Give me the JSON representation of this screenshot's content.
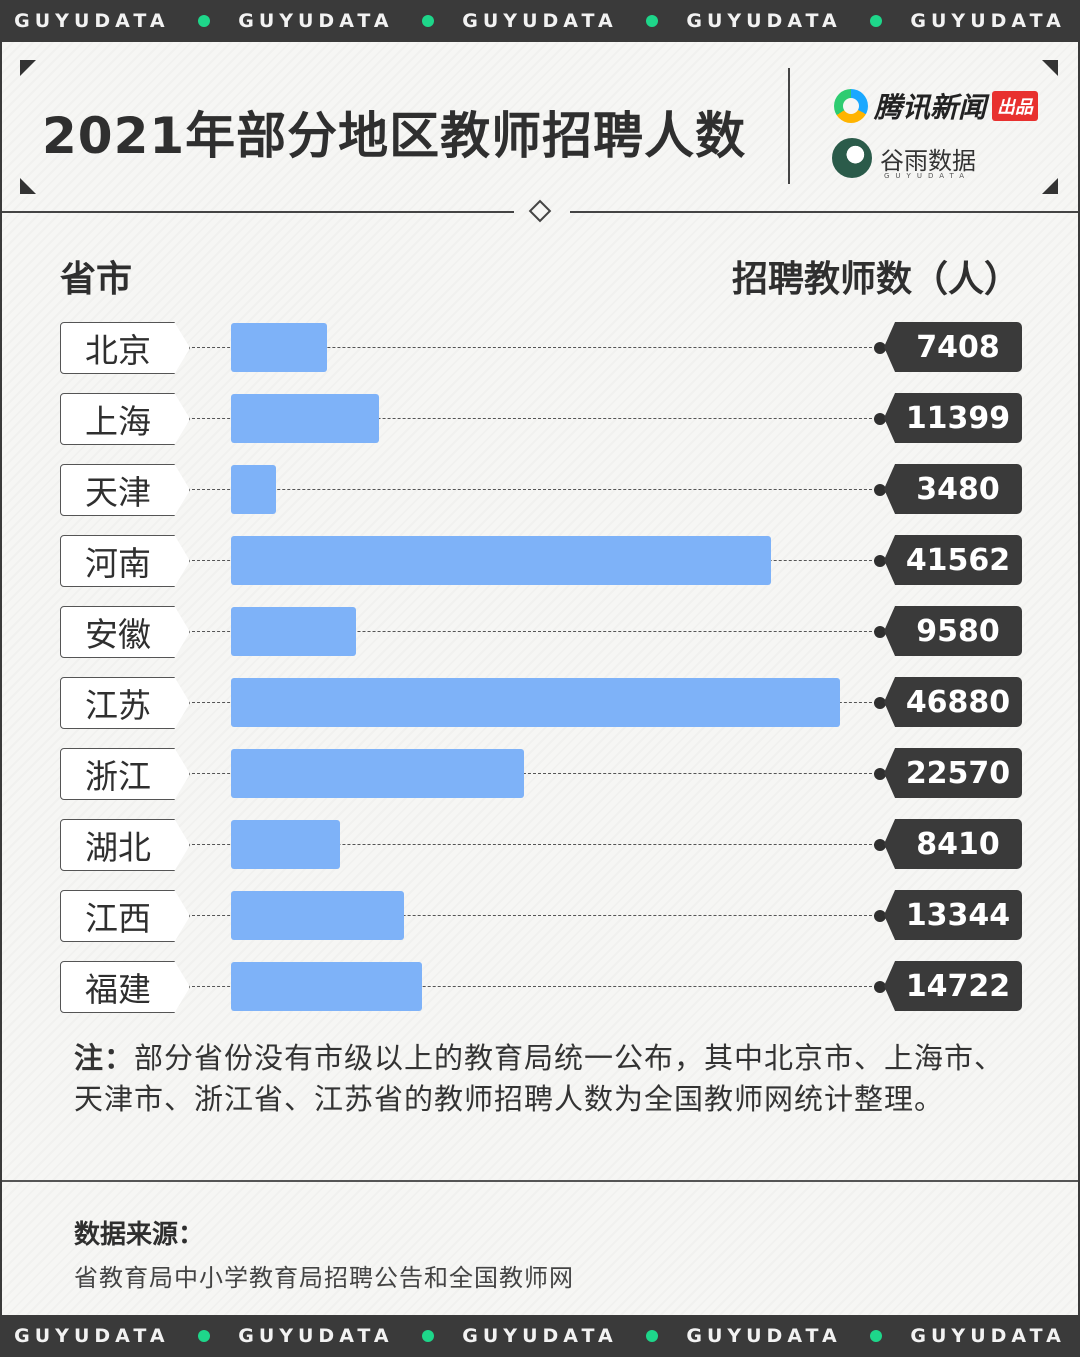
{
  "ticker": {
    "top": [
      "GUYUDATA",
      "GUYUDATA",
      "GUYUDATA",
      "GUYUDATA",
      "GUYUDATA"
    ],
    "bottom": [
      "GUYUDATA",
      "GUYUDATA",
      "GUYUDATA",
      "GUYUDATA",
      "GUYUDATA"
    ],
    "dot_color": "#1ed68a"
  },
  "brand": {
    "tencent": "腾讯新闻",
    "tencent_tag": "出品",
    "guyu": "谷雨数据",
    "guyu_sub": "GUYUDATA"
  },
  "colors": {
    "bar": "#7eb2f8",
    "dark": "#3a3a3a"
  },
  "chart_data": {
    "type": "bar",
    "orientation": "horizontal",
    "title": "2021年部分地区教师招聘人数",
    "xlabel": "招聘教师数（人）",
    "ylabel": "省市",
    "xlim": [
      0,
      50000
    ],
    "grid": false,
    "categories": [
      "北京",
      "上海",
      "天津",
      "河南",
      "安徽",
      "江苏",
      "浙江",
      "湖北",
      "江西",
      "福建"
    ],
    "values": [
      7408,
      11399,
      3480,
      41562,
      9580,
      46880,
      22570,
      8410,
      13344,
      14722
    ],
    "value_labels": [
      "7408",
      "11399",
      "3480",
      "41562",
      "9580",
      "46880",
      "22570",
      "8410",
      "13344",
      "14722"
    ]
  },
  "note": {
    "label": "注：",
    "text": "部分省份没有市级以上的教育局统一公布，其中北京市、上海市、天津市、浙江省、江苏省的教师招聘人数为全国教师网统计整理。"
  },
  "source": {
    "title": "数据来源：",
    "text": "省教育局中小学教育局招聘公告和全国教师网"
  }
}
